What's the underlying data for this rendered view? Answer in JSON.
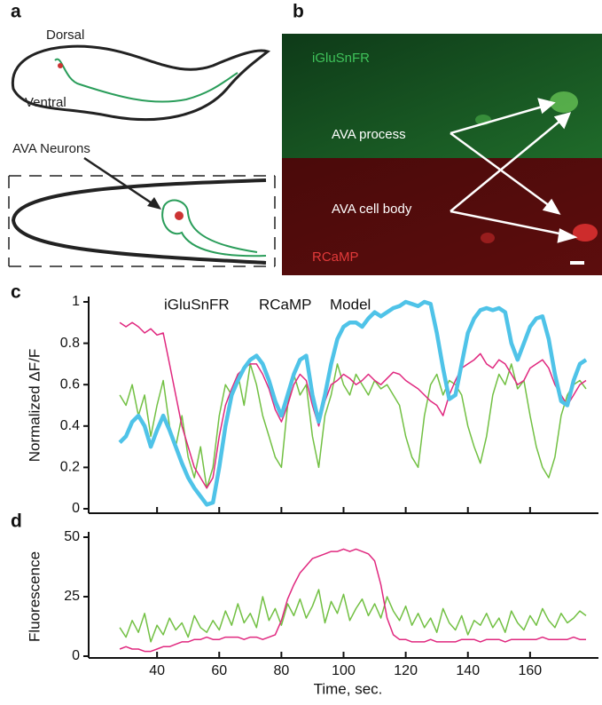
{
  "panels": {
    "labels": [
      "a",
      "b",
      "c",
      "d"
    ],
    "a": {
      "dorsal": "Dorsal",
      "ventral": "Ventral",
      "neurons": "AVA Neurons"
    },
    "b": {
      "green_channel": "iGluSnFR",
      "process": "AVA process",
      "cell_body": "AVA cell body",
      "red_channel": "RCaMP"
    }
  },
  "chart_data": [
    {
      "type": "line",
      "y_label": "Normalized ΔF/F",
      "x": [
        28,
        30,
        32,
        34,
        36,
        38,
        40,
        42,
        44,
        46,
        48,
        50,
        52,
        54,
        56,
        58,
        60,
        62,
        64,
        66,
        68,
        70,
        72,
        74,
        76,
        78,
        80,
        82,
        84,
        86,
        88,
        90,
        92,
        94,
        96,
        98,
        100,
        102,
        104,
        106,
        108,
        110,
        112,
        114,
        116,
        118,
        120,
        122,
        124,
        126,
        128,
        130,
        132,
        134,
        136,
        138,
        140,
        142,
        144,
        146,
        148,
        150,
        152,
        154,
        156,
        158,
        160,
        162,
        164,
        166,
        168,
        170,
        172,
        174,
        176,
        178
      ],
      "xlim": [
        18,
        182
      ],
      "ylim": [
        0,
        1
      ],
      "yticks": [
        0,
        0.2,
        0.4,
        0.6,
        0.8,
        1
      ],
      "xticks": [
        40,
        60,
        80,
        100,
        120,
        140,
        160
      ],
      "series": [
        {
          "name": "iGluSnFR",
          "color": "#72c043",
          "values": [
            0.55,
            0.5,
            0.6,
            0.45,
            0.55,
            0.35,
            0.5,
            0.62,
            0.4,
            0.3,
            0.45,
            0.25,
            0.15,
            0.3,
            0.1,
            0.2,
            0.45,
            0.6,
            0.55,
            0.65,
            0.5,
            0.7,
            0.6,
            0.45,
            0.35,
            0.25,
            0.2,
            0.5,
            0.65,
            0.55,
            0.6,
            0.35,
            0.2,
            0.45,
            0.55,
            0.7,
            0.6,
            0.55,
            0.65,
            0.6,
            0.55,
            0.62,
            0.58,
            0.6,
            0.55,
            0.5,
            0.35,
            0.25,
            0.2,
            0.45,
            0.6,
            0.65,
            0.55,
            0.62,
            0.6,
            0.55,
            0.4,
            0.3,
            0.22,
            0.35,
            0.55,
            0.65,
            0.6,
            0.7,
            0.58,
            0.62,
            0.45,
            0.3,
            0.2,
            0.15,
            0.25,
            0.45,
            0.55,
            0.6,
            0.62,
            0.58
          ]
        },
        {
          "name": "RCaMP",
          "color": "#e0287f",
          "values": [
            0.9,
            0.88,
            0.9,
            0.88,
            0.85,
            0.87,
            0.84,
            0.85,
            0.7,
            0.55,
            0.4,
            0.3,
            0.2,
            0.15,
            0.1,
            0.15,
            0.35,
            0.5,
            0.58,
            0.65,
            0.68,
            0.7,
            0.7,
            0.65,
            0.58,
            0.48,
            0.42,
            0.5,
            0.6,
            0.65,
            0.62,
            0.5,
            0.4,
            0.52,
            0.6,
            0.62,
            0.65,
            0.63,
            0.6,
            0.62,
            0.65,
            0.62,
            0.6,
            0.63,
            0.66,
            0.65,
            0.62,
            0.6,
            0.58,
            0.55,
            0.52,
            0.5,
            0.45,
            0.55,
            0.62,
            0.68,
            0.7,
            0.72,
            0.75,
            0.7,
            0.68,
            0.72,
            0.7,
            0.65,
            0.6,
            0.62,
            0.68,
            0.7,
            0.72,
            0.68,
            0.6,
            0.55,
            0.5,
            0.55,
            0.6,
            0.62
          ]
        },
        {
          "name": "Model",
          "color": "#4fc3e8",
          "values": [
            0.32,
            0.35,
            0.42,
            0.45,
            0.4,
            0.3,
            0.38,
            0.45,
            0.38,
            0.3,
            0.22,
            0.15,
            0.1,
            0.06,
            0.02,
            0.03,
            0.2,
            0.4,
            0.55,
            0.62,
            0.68,
            0.72,
            0.74,
            0.7,
            0.62,
            0.52,
            0.45,
            0.55,
            0.65,
            0.72,
            0.74,
            0.55,
            0.42,
            0.55,
            0.7,
            0.82,
            0.88,
            0.9,
            0.9,
            0.88,
            0.92,
            0.95,
            0.93,
            0.95,
            0.97,
            0.98,
            1.0,
            0.99,
            0.98,
            1.0,
            0.99,
            0.85,
            0.68,
            0.53,
            0.55,
            0.7,
            0.85,
            0.92,
            0.96,
            0.97,
            0.96,
            0.97,
            0.95,
            0.8,
            0.72,
            0.8,
            0.88,
            0.92,
            0.93,
            0.82,
            0.65,
            0.52,
            0.5,
            0.62,
            0.7,
            0.72
          ]
        }
      ]
    },
    {
      "type": "line",
      "y_label": "Fluorescence",
      "x_label": "Time, sec.",
      "x": [
        28,
        30,
        32,
        34,
        36,
        38,
        40,
        42,
        44,
        46,
        48,
        50,
        52,
        54,
        56,
        58,
        60,
        62,
        64,
        66,
        68,
        70,
        72,
        74,
        76,
        78,
        80,
        82,
        84,
        86,
        88,
        90,
        92,
        94,
        96,
        98,
        100,
        102,
        104,
        106,
        108,
        110,
        112,
        114,
        116,
        118,
        120,
        122,
        124,
        126,
        128,
        130,
        132,
        134,
        136,
        138,
        140,
        142,
        144,
        146,
        148,
        150,
        152,
        154,
        156,
        158,
        160,
        162,
        164,
        166,
        168,
        170,
        172,
        174,
        176,
        178
      ],
      "xlim": [
        18,
        182
      ],
      "ylim": [
        0,
        50
      ],
      "yticks": [
        0,
        25,
        50
      ],
      "xticks": [
        40,
        60,
        80,
        100,
        120,
        140,
        160
      ],
      "series": [
        {
          "name": "iGluSnFR",
          "color": "#72c043",
          "values": [
            12,
            8,
            15,
            10,
            18,
            6,
            13,
            9,
            16,
            11,
            14,
            8,
            17,
            12,
            10,
            15,
            11,
            19,
            13,
            22,
            14,
            18,
            12,
            25,
            15,
            20,
            13,
            22,
            17,
            24,
            16,
            21,
            28,
            14,
            23,
            18,
            26,
            15,
            20,
            24,
            17,
            22,
            16,
            25,
            19,
            15,
            21,
            13,
            18,
            12,
            16,
            10,
            20,
            14,
            11,
            17,
            9,
            15,
            13,
            18,
            12,
            16,
            10,
            19,
            14,
            11,
            17,
            13,
            20,
            15,
            12,
            18,
            14,
            16,
            19,
            17
          ]
        },
        {
          "name": "RCaMP",
          "color": "#e0287f",
          "values": [
            3,
            4,
            3,
            3,
            2,
            2,
            3,
            4,
            4,
            5,
            6,
            6,
            7,
            7,
            8,
            7,
            7,
            8,
            8,
            8,
            7,
            8,
            8,
            7,
            8,
            9,
            15,
            24,
            30,
            35,
            38,
            41,
            42,
            43,
            44,
            44,
            45,
            44,
            45,
            44,
            43,
            40,
            30,
            16,
            9,
            7,
            7,
            6,
            6,
            6,
            7,
            6,
            6,
            6,
            6,
            7,
            7,
            7,
            6,
            7,
            7,
            7,
            6,
            7,
            7,
            7,
            7,
            7,
            8,
            7,
            7,
            7,
            7,
            8,
            7,
            7
          ]
        }
      ]
    }
  ]
}
